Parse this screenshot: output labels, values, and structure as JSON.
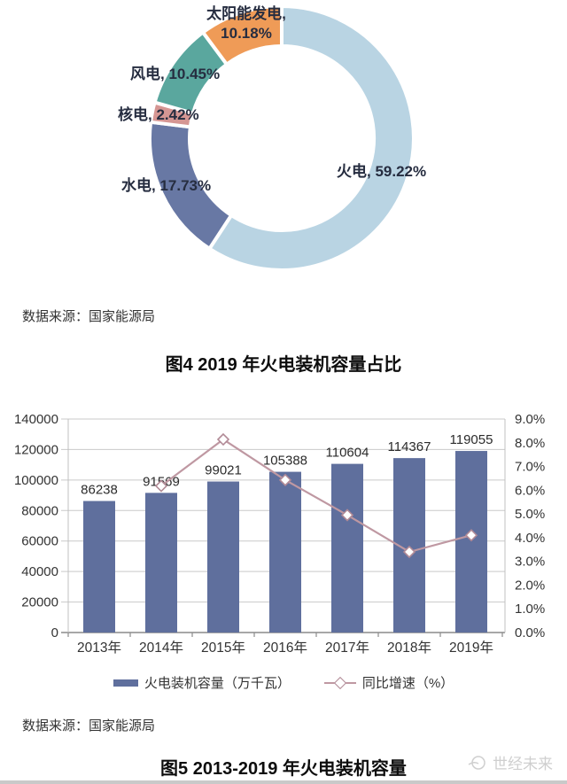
{
  "figure4": {
    "source_note": "数据来源：国家能源局",
    "title": "图4 2019 年火电装机容量占比"
  },
  "figure5": {
    "source_note": "数据来源：国家能源局",
    "title": "图5 2013-2019 年火电装机容量"
  },
  "watermark": {
    "text": "世经未来"
  },
  "chart_data": [
    {
      "type": "pie",
      "donut": true,
      "title": "图4 2019 年火电装机容量占比",
      "labels": [
        "火电",
        "水电",
        "核电",
        "风电",
        "太阳能发电"
      ],
      "values": [
        59.22,
        17.73,
        2.42,
        10.45,
        10.18
      ],
      "unit": "%",
      "colors": [
        "#b9d4e3",
        "#6878a4",
        "#d59693",
        "#5aa79e",
        "#ef9b57"
      ],
      "segment_names": [
        "thermal",
        "hydro",
        "nuclear",
        "wind",
        "solar"
      ],
      "point_labels": [
        "火电, 59.22%",
        "水电, 17.73%",
        "核电, 2.42%",
        "风电, 10.45%",
        "太阳能发电,\n10.18%"
      ],
      "start_angle": "top",
      "clockwise": true,
      "source": "数据来源：国家能源局"
    },
    {
      "type": "bar",
      "title": "图5 2013-2019 年火电装机容量",
      "categories": [
        "2013年",
        "2014年",
        "2015年",
        "2016年",
        "2017年",
        "2018年",
        "2019年"
      ],
      "series": [
        {
          "name": "火电装机容量（万千瓦）",
          "type": "bar",
          "axis": "left",
          "color": "#5f6f9d",
          "values": [
            86238,
            91569,
            99021,
            105388,
            110604,
            114367,
            119055
          ],
          "data_labels": [
            "86238",
            "91569",
            "99021",
            "105388",
            "110604",
            "114367",
            "119055"
          ]
        },
        {
          "name": "同比增速（%）",
          "type": "line",
          "axis": "right",
          "color": "#bf98a2",
          "marker": "diamond",
          "marker_fill": "#ffffff",
          "marker_stroke": "#b18a96",
          "values": [
            null,
            6.18,
            8.14,
            6.43,
            4.95,
            3.4,
            4.1
          ]
        }
      ],
      "left_axis": {
        "min": 0,
        "max": 140000,
        "step": 20000,
        "ticks": [
          "0",
          "20000",
          "40000",
          "60000",
          "80000",
          "100000",
          "120000",
          "140000"
        ]
      },
      "right_axis": {
        "min": 0,
        "max": 9,
        "step": 1,
        "ticks": [
          "0.0%",
          "1.0%",
          "2.0%",
          "3.0%",
          "4.0%",
          "5.0%",
          "6.0%",
          "7.0%",
          "8.0%",
          "9.0%"
        ]
      },
      "grid": true,
      "gridline_color": "#c9c9c9",
      "axis_color": "#8a8a8a",
      "legend_position": "bottom",
      "source": "数据来源：国家能源局"
    }
  ]
}
